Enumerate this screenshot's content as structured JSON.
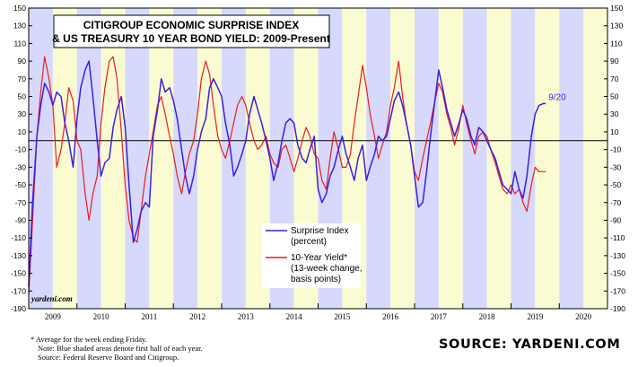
{
  "chart_data": {
    "type": "line",
    "title": "CITIGROUP ECONOMIC SURPRISE INDEX\n& US TREASURY 10 YEAR BOND YIELD: 2009-Present",
    "xlabel": "",
    "ylabel": "",
    "xlim": [
      2009,
      2021
    ],
    "ylim": [
      -190,
      150
    ],
    "y_ticks": [
      150,
      130,
      110,
      90,
      70,
      50,
      30,
      10,
      -10,
      -30,
      -50,
      -70,
      -90,
      -110,
      -130,
      -150,
      -170,
      -190
    ],
    "x_tick_labels": [
      "2009",
      "2010",
      "2011",
      "2012",
      "2013",
      "2014",
      "2015",
      "2016",
      "2017",
      "2018",
      "2019",
      "2020"
    ],
    "grid": false,
    "zero_line": 0,
    "shaded_first_half_color": "#d6d9fb",
    "unshaded_second_half_color": "#fbfbd2",
    "legend_placement": "bottom-center",
    "series": [
      {
        "name": "Surprise Index",
        "name_line2": "(percent)",
        "color": "#3a1ee6",
        "x": [
          2009.0,
          2009.08,
          2009.17,
          2009.25,
          2009.33,
          2009.42,
          2009.5,
          2009.58,
          2009.67,
          2009.75,
          2009.83,
          2009.92,
          2010.0,
          2010.08,
          2010.17,
          2010.25,
          2010.33,
          2010.42,
          2010.5,
          2010.58,
          2010.67,
          2010.75,
          2010.83,
          2010.92,
          2011.0,
          2011.08,
          2011.17,
          2011.25,
          2011.33,
          2011.42,
          2011.5,
          2011.58,
          2011.67,
          2011.75,
          2011.83,
          2011.92,
          2012.0,
          2012.08,
          2012.17,
          2012.25,
          2012.33,
          2012.42,
          2012.5,
          2012.58,
          2012.67,
          2012.75,
          2012.83,
          2012.92,
          2013.0,
          2013.08,
          2013.17,
          2013.25,
          2013.33,
          2013.42,
          2013.5,
          2013.58,
          2013.67,
          2013.75,
          2013.83,
          2013.92,
          2014.0,
          2014.08,
          2014.17,
          2014.25,
          2014.33,
          2014.42,
          2014.5,
          2014.58,
          2014.67,
          2014.75,
          2014.83,
          2014.92,
          2015.0,
          2015.08,
          2015.17,
          2015.25,
          2015.33,
          2015.42,
          2015.5,
          2015.58,
          2015.67,
          2015.75,
          2015.83,
          2015.92,
          2016.0,
          2016.08,
          2016.17,
          2016.25,
          2016.33,
          2016.42,
          2016.5,
          2016.58,
          2016.67,
          2016.75,
          2016.83,
          2016.92,
          2017.0,
          2017.08,
          2017.17,
          2017.25,
          2017.33,
          2017.42,
          2017.5,
          2017.58,
          2017.67,
          2017.75,
          2017.83,
          2017.92,
          2018.0,
          2018.08,
          2018.17,
          2018.25,
          2018.33,
          2018.42,
          2018.5,
          2018.58,
          2018.67,
          2018.75,
          2018.83,
          2018.92,
          2019.0,
          2019.08,
          2019.17,
          2019.25,
          2019.33,
          2019.42,
          2019.5,
          2019.58,
          2019.67,
          2019.72
        ],
        "values": [
          -165,
          -70,
          5,
          40,
          65,
          55,
          40,
          55,
          50,
          20,
          0,
          -30,
          25,
          60,
          80,
          90,
          50,
          0,
          -40,
          -25,
          -20,
          15,
          35,
          50,
          15,
          -50,
          -115,
          -100,
          -80,
          -70,
          -75,
          5,
          35,
          70,
          55,
          60,
          45,
          25,
          -10,
          -40,
          -60,
          -40,
          -10,
          10,
          25,
          60,
          70,
          60,
          50,
          20,
          -5,
          -40,
          -30,
          -15,
          0,
          30,
          50,
          35,
          20,
          0,
          -20,
          -45,
          -25,
          0,
          20,
          25,
          20,
          -5,
          -20,
          -25,
          -10,
          5,
          -55,
          -70,
          -60,
          -40,
          -30,
          -10,
          5,
          -15,
          -30,
          -45,
          -20,
          -5,
          -45,
          -30,
          -15,
          5,
          0,
          5,
          25,
          45,
          55,
          40,
          20,
          -5,
          -40,
          -75,
          -70,
          -35,
          5,
          45,
          80,
          60,
          35,
          20,
          5,
          20,
          35,
          25,
          5,
          -5,
          15,
          10,
          0,
          -10,
          -20,
          -35,
          -50,
          -55,
          -60,
          -35,
          -55,
          -65,
          -40,
          5,
          30,
          40,
          42,
          42
        ]
      },
      {
        "name": "10-Year Yield*",
        "name_line2": "(13-week change,",
        "name_line3": "basis points)",
        "color": "#ec1c1c",
        "x": [
          2009.0,
          2009.08,
          2009.17,
          2009.25,
          2009.33,
          2009.42,
          2009.5,
          2009.58,
          2009.67,
          2009.75,
          2009.83,
          2009.92,
          2010.0,
          2010.08,
          2010.17,
          2010.25,
          2010.33,
          2010.42,
          2010.5,
          2010.58,
          2010.67,
          2010.75,
          2010.83,
          2010.92,
          2011.0,
          2011.08,
          2011.17,
          2011.25,
          2011.33,
          2011.42,
          2011.5,
          2011.58,
          2011.67,
          2011.75,
          2011.83,
          2011.92,
          2012.0,
          2012.08,
          2012.17,
          2012.25,
          2012.33,
          2012.42,
          2012.5,
          2012.58,
          2012.67,
          2012.75,
          2012.83,
          2012.92,
          2013.0,
          2013.08,
          2013.17,
          2013.25,
          2013.33,
          2013.42,
          2013.5,
          2013.58,
          2013.67,
          2013.75,
          2013.83,
          2013.92,
          2014.0,
          2014.08,
          2014.17,
          2014.25,
          2014.33,
          2014.42,
          2014.5,
          2014.58,
          2014.67,
          2014.75,
          2014.83,
          2014.92,
          2015.0,
          2015.08,
          2015.17,
          2015.25,
          2015.33,
          2015.42,
          2015.5,
          2015.58,
          2015.67,
          2015.75,
          2015.83,
          2015.92,
          2016.0,
          2016.08,
          2016.17,
          2016.25,
          2016.33,
          2016.42,
          2016.5,
          2016.58,
          2016.67,
          2016.75,
          2016.83,
          2016.92,
          2017.0,
          2017.08,
          2017.17,
          2017.25,
          2017.33,
          2017.42,
          2017.5,
          2017.58,
          2017.67,
          2017.75,
          2017.83,
          2017.92,
          2018.0,
          2018.08,
          2018.17,
          2018.25,
          2018.33,
          2018.42,
          2018.5,
          2018.58,
          2018.67,
          2018.75,
          2018.83,
          2018.92,
          2019.0,
          2019.08,
          2019.17,
          2019.25,
          2019.33,
          2019.42,
          2019.5,
          2019.58,
          2019.67,
          2019.72
        ],
        "values": [
          -175,
          -90,
          5,
          55,
          95,
          70,
          40,
          -30,
          -10,
          20,
          60,
          45,
          0,
          -10,
          -60,
          -90,
          -60,
          -40,
          20,
          60,
          90,
          95,
          70,
          10,
          -50,
          -90,
          -110,
          -115,
          -80,
          -40,
          -15,
          10,
          40,
          50,
          30,
          5,
          -15,
          -40,
          -60,
          -35,
          -15,
          0,
          30,
          70,
          90,
          75,
          40,
          5,
          -10,
          -20,
          0,
          20,
          40,
          50,
          40,
          20,
          0,
          -10,
          -5,
          5,
          -15,
          -25,
          -30,
          -10,
          -5,
          -20,
          -35,
          -20,
          0,
          15,
          5,
          -15,
          -20,
          -45,
          -55,
          -20,
          10,
          -10,
          -30,
          -30,
          -15,
          20,
          50,
          85,
          60,
          30,
          5,
          -20,
          -5,
          10,
          40,
          60,
          90,
          50,
          20,
          -5,
          -35,
          -45,
          -20,
          0,
          20,
          45,
          65,
          55,
          30,
          15,
          -5,
          15,
          40,
          20,
          0,
          -15,
          5,
          10,
          5,
          -10,
          -25,
          -40,
          -55,
          -60,
          -50,
          -60,
          -55,
          -70,
          -80,
          -50,
          -30,
          -35,
          -35,
          -35
        ]
      }
    ],
    "annotations": [
      {
        "text": "9/20",
        "x": 2019.72,
        "y": 42,
        "color": "#3a1ee6"
      },
      {
        "text": "yardeni.com",
        "placement": "bottom-left"
      }
    ]
  },
  "footnotes": {
    "line1": "*  Average for the week ending Friday.",
    "line2": "Note: Blue shaded areas denote first half of each year.",
    "line3": "Source: Federal Reserve Board and Citigroup."
  },
  "source_label": "SOURCE: YARDENI.COM"
}
